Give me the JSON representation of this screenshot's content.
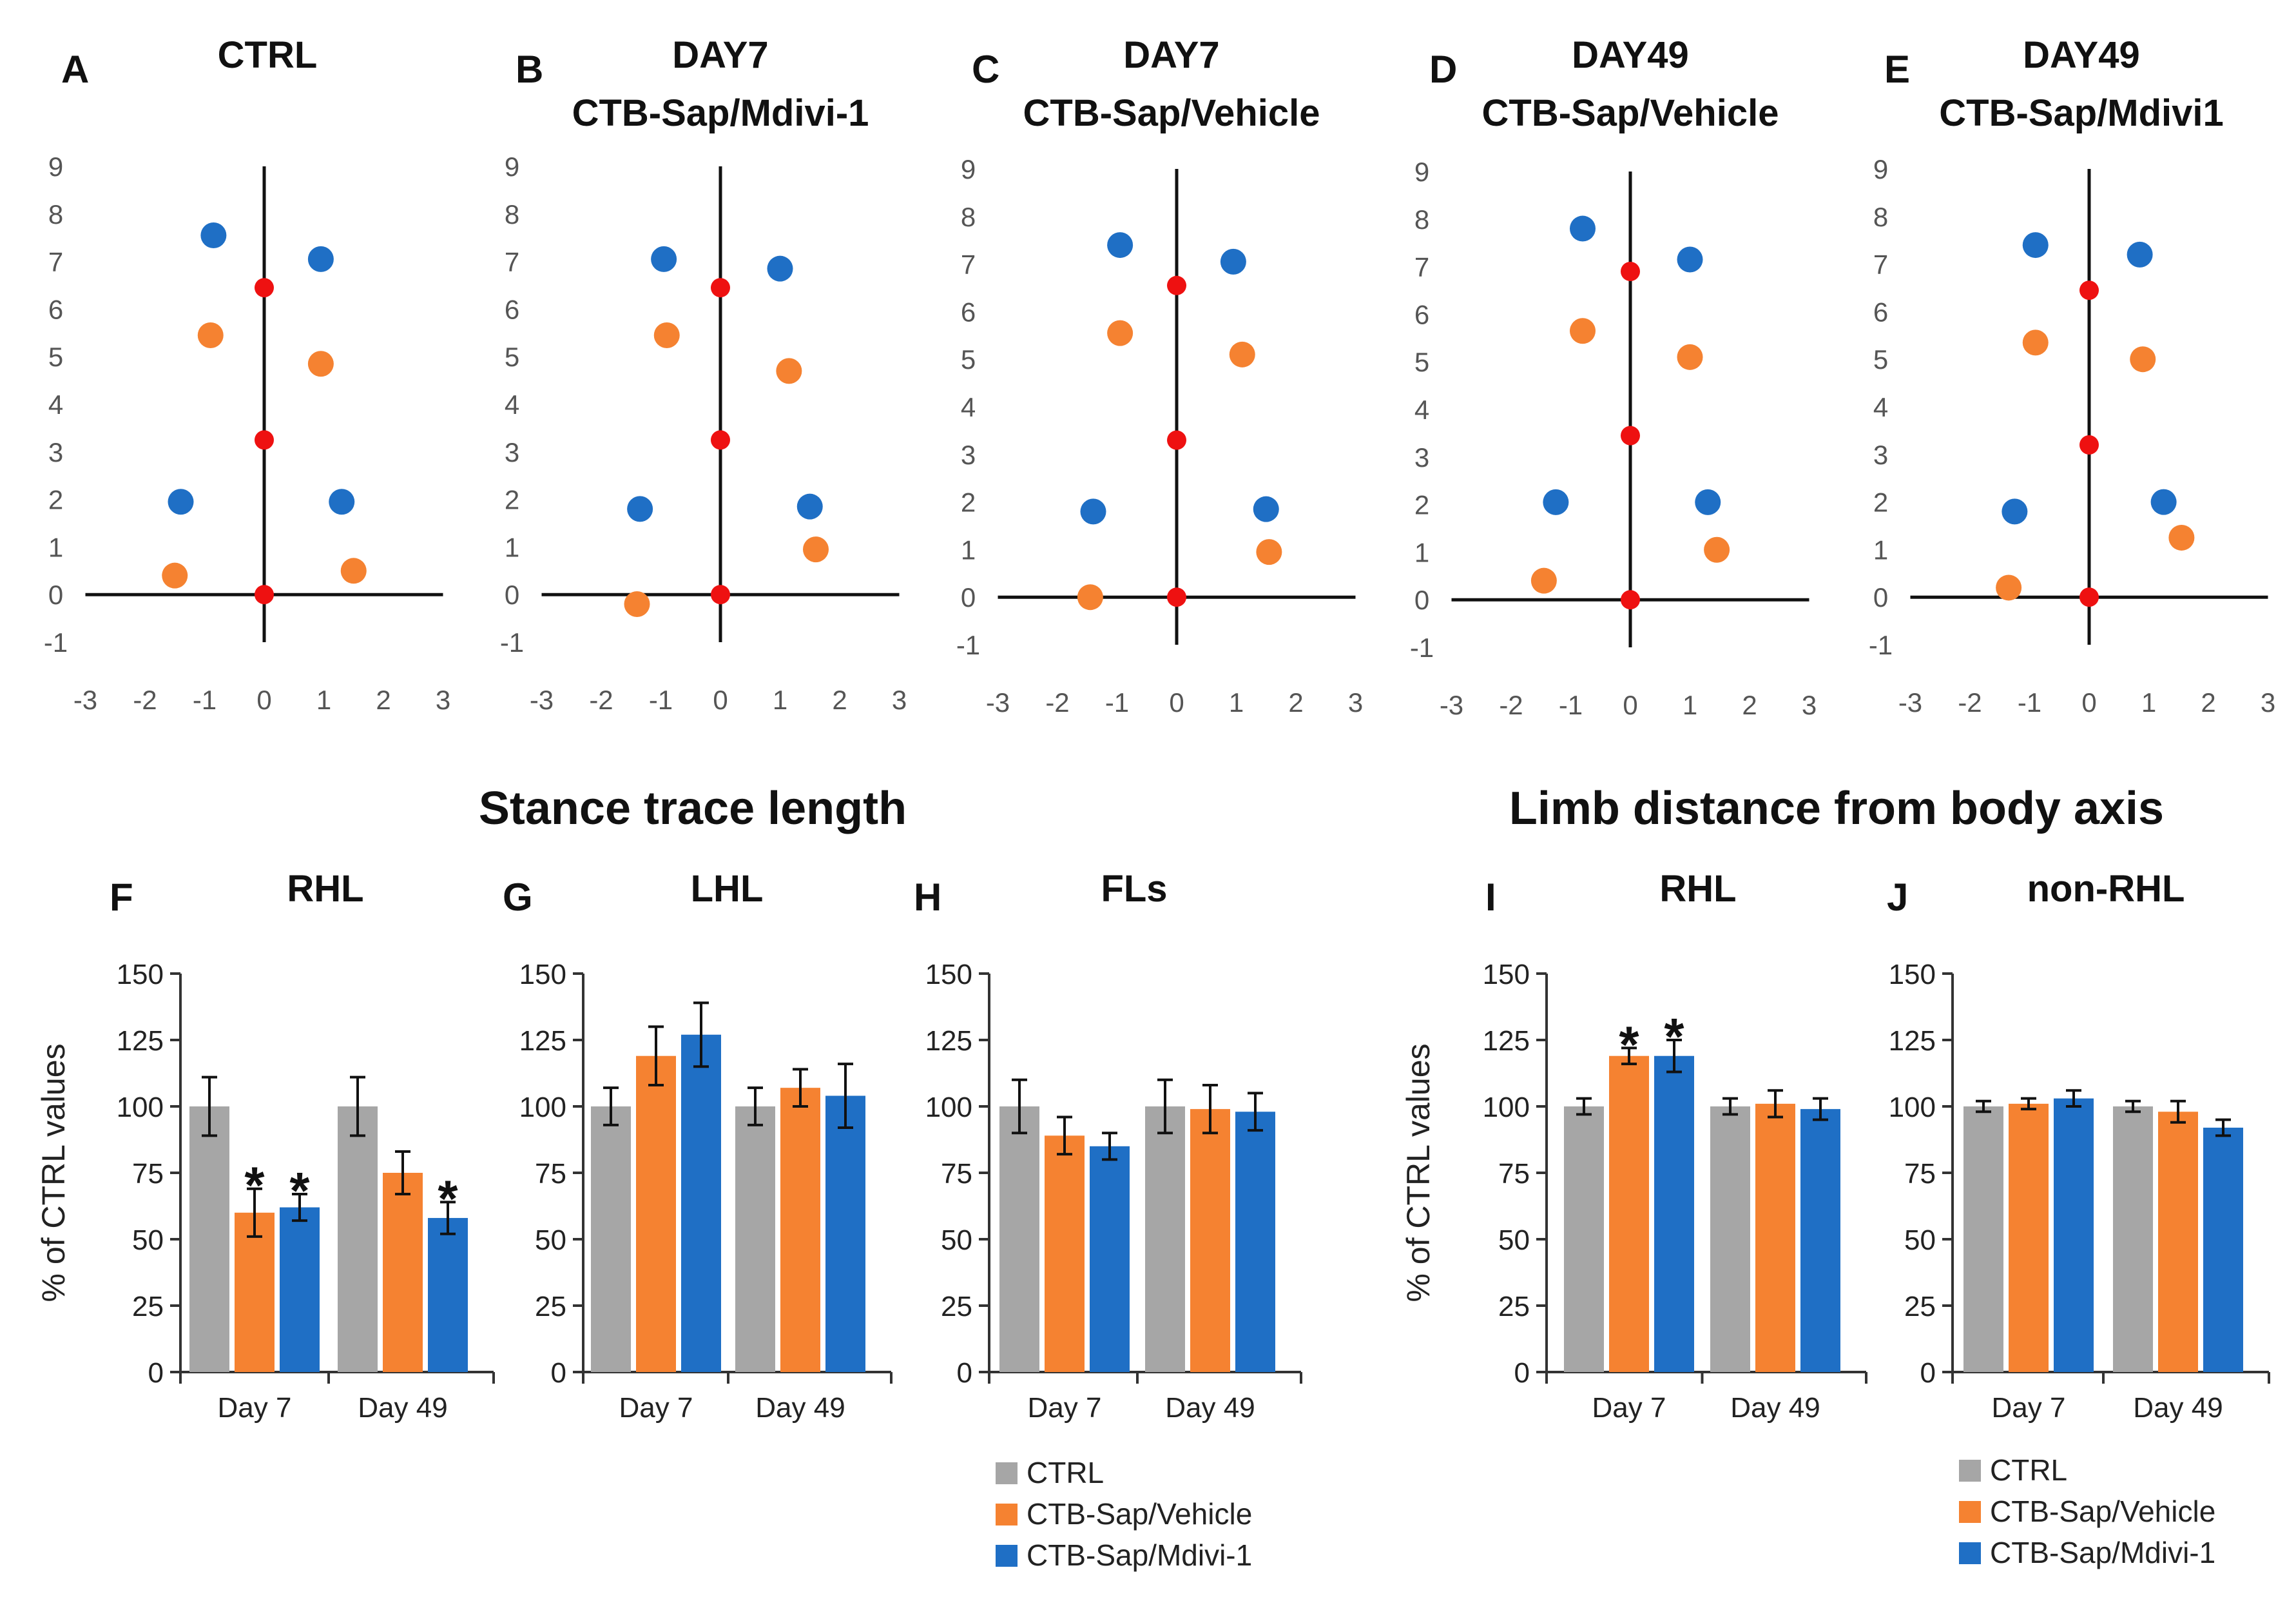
{
  "colors": {
    "ctrl": "#a6a6a6",
    "vehicle": "#f58231",
    "mdivi": "#1f6fc5",
    "center": "#ee1111",
    "axis": "#111111"
  },
  "section_titles": {
    "stance": "Stance trace length",
    "limb": "Limb distance from body axis"
  },
  "legends": [
    {
      "items": [
        {
          "label": "CTRL",
          "color_key": "ctrl"
        },
        {
          "label": "CTB-Sap/Vehicle",
          "color_key": "vehicle"
        },
        {
          "label": "CTB-Sap/Mdivi-1",
          "color_key": "mdivi"
        }
      ]
    },
    {
      "items": [
        {
          "label": "CTRL",
          "color_key": "ctrl"
        },
        {
          "label": "CTB-Sap/Vehicle",
          "color_key": "vehicle"
        },
        {
          "label": "CTB-Sap/Mdivi-1",
          "color_key": "mdivi"
        }
      ]
    }
  ],
  "chart_data": [
    {
      "id": "A",
      "type": "scatter",
      "label": "A",
      "title": [
        "CTRL"
      ],
      "xlim": [
        -3,
        3
      ],
      "ylim": [
        -1,
        9
      ],
      "xticks": [
        "-3",
        "-2",
        "-1",
        "0",
        "1",
        "2",
        "3"
      ],
      "yticks": [
        "-1",
        "0",
        "1",
        "2",
        "3",
        "4",
        "5",
        "6",
        "7",
        "8",
        "9"
      ],
      "points": [
        {
          "x": -0.85,
          "y": 7.55,
          "group": "mdivi"
        },
        {
          "x": 0.95,
          "y": 7.05,
          "group": "mdivi"
        },
        {
          "x": -0.9,
          "y": 5.45,
          "group": "vehicle"
        },
        {
          "x": 0.95,
          "y": 4.85,
          "group": "vehicle"
        },
        {
          "x": -1.4,
          "y": 1.95,
          "group": "mdivi"
        },
        {
          "x": 1.3,
          "y": 1.95,
          "group": "mdivi"
        },
        {
          "x": -1.5,
          "y": 0.4,
          "group": "vehicle"
        },
        {
          "x": 1.5,
          "y": 0.5,
          "group": "vehicle"
        },
        {
          "x": 0,
          "y": 6.45,
          "group": "center"
        },
        {
          "x": 0,
          "y": 3.25,
          "group": "center"
        },
        {
          "x": 0,
          "y": 0,
          "group": "center"
        }
      ]
    },
    {
      "id": "B",
      "type": "scatter",
      "label": "B",
      "title": [
        "DAY7",
        "CTB-Sap/Mdivi-1"
      ],
      "xlim": [
        -3,
        3
      ],
      "ylim": [
        -1,
        9
      ],
      "xticks": [
        "-3",
        "-2",
        "-1",
        "0",
        "1",
        "2",
        "3"
      ],
      "yticks": [
        "-1",
        "0",
        "1",
        "2",
        "3",
        "4",
        "5",
        "6",
        "7",
        "8",
        "9"
      ],
      "points": [
        {
          "x": -0.95,
          "y": 7.05,
          "group": "mdivi"
        },
        {
          "x": 1.0,
          "y": 6.85,
          "group": "mdivi"
        },
        {
          "x": -0.9,
          "y": 5.45,
          "group": "vehicle"
        },
        {
          "x": 1.15,
          "y": 4.7,
          "group": "vehicle"
        },
        {
          "x": -1.35,
          "y": 1.8,
          "group": "mdivi"
        },
        {
          "x": 1.5,
          "y": 1.85,
          "group": "mdivi"
        },
        {
          "x": -1.4,
          "y": -0.2,
          "group": "vehicle"
        },
        {
          "x": 1.6,
          "y": 0.95,
          "group": "vehicle"
        },
        {
          "x": 0,
          "y": 6.45,
          "group": "center"
        },
        {
          "x": 0,
          "y": 3.25,
          "group": "center"
        },
        {
          "x": 0,
          "y": 0,
          "group": "center"
        }
      ]
    },
    {
      "id": "C",
      "type": "scatter",
      "label": "C",
      "title": [
        "DAY7",
        "CTB-Sap/Vehicle"
      ],
      "xlim": [
        -3,
        3
      ],
      "ylim": [
        -1,
        9
      ],
      "xticks": [
        "-3",
        "-2",
        "-1",
        "0",
        "1",
        "2",
        "3"
      ],
      "yticks": [
        "-1",
        "0",
        "1",
        "2",
        "3",
        "4",
        "5",
        "6",
        "7",
        "8",
        "9"
      ],
      "points": [
        {
          "x": -0.95,
          "y": 7.4,
          "group": "mdivi"
        },
        {
          "x": 0.95,
          "y": 7.05,
          "group": "mdivi"
        },
        {
          "x": -0.95,
          "y": 5.55,
          "group": "vehicle"
        },
        {
          "x": 1.1,
          "y": 5.1,
          "group": "vehicle"
        },
        {
          "x": -1.4,
          "y": 1.8,
          "group": "mdivi"
        },
        {
          "x": 1.5,
          "y": 1.85,
          "group": "mdivi"
        },
        {
          "x": -1.45,
          "y": 0.0,
          "group": "vehicle"
        },
        {
          "x": 1.55,
          "y": 0.95,
          "group": "vehicle"
        },
        {
          "x": 0,
          "y": 6.55,
          "group": "center"
        },
        {
          "x": 0,
          "y": 3.3,
          "group": "center"
        },
        {
          "x": 0,
          "y": 0,
          "group": "center"
        }
      ]
    },
    {
      "id": "D",
      "type": "scatter",
      "label": "D",
      "title": [
        "DAY49",
        "CTB-Sap/Vehicle"
      ],
      "xlim": [
        -3,
        3
      ],
      "ylim": [
        -1,
        9
      ],
      "xticks": [
        "-3",
        "-2",
        "-1",
        "0",
        "1",
        "2",
        "3"
      ],
      "yticks": [
        "-1",
        "0",
        "1",
        "2",
        "3",
        "4",
        "5",
        "6",
        "7",
        "8",
        "9"
      ],
      "points": [
        {
          "x": -0.8,
          "y": 7.8,
          "group": "mdivi"
        },
        {
          "x": 1.0,
          "y": 7.15,
          "group": "mdivi"
        },
        {
          "x": -0.8,
          "y": 5.65,
          "group": "vehicle"
        },
        {
          "x": 1.0,
          "y": 5.1,
          "group": "vehicle"
        },
        {
          "x": -1.25,
          "y": 2.05,
          "group": "mdivi"
        },
        {
          "x": 1.3,
          "y": 2.05,
          "group": "mdivi"
        },
        {
          "x": -1.45,
          "y": 0.4,
          "group": "vehicle"
        },
        {
          "x": 1.45,
          "y": 1.05,
          "group": "vehicle"
        },
        {
          "x": 0,
          "y": 6.9,
          "group": "center"
        },
        {
          "x": 0,
          "y": 3.45,
          "group": "center"
        },
        {
          "x": 0,
          "y": 0,
          "group": "center"
        }
      ]
    },
    {
      "id": "E",
      "type": "scatter",
      "label": "E",
      "title": [
        "DAY49",
        "CTB-Sap/Mdivi1"
      ],
      "xlim": [
        -3,
        3
      ],
      "ylim": [
        -1,
        9
      ],
      "xticks": [
        "-3",
        "-2",
        "-1",
        "0",
        "1",
        "2",
        "3"
      ],
      "yticks": [
        "-1",
        "0",
        "1",
        "2",
        "3",
        "4",
        "5",
        "6",
        "7",
        "8",
        "9"
      ],
      "points": [
        {
          "x": -0.9,
          "y": 7.4,
          "group": "mdivi"
        },
        {
          "x": 0.85,
          "y": 7.2,
          "group": "mdivi"
        },
        {
          "x": -0.9,
          "y": 5.35,
          "group": "vehicle"
        },
        {
          "x": 0.9,
          "y": 5.0,
          "group": "vehicle"
        },
        {
          "x": -1.25,
          "y": 1.8,
          "group": "mdivi"
        },
        {
          "x": 1.25,
          "y": 2.0,
          "group": "mdivi"
        },
        {
          "x": -1.35,
          "y": 0.2,
          "group": "vehicle"
        },
        {
          "x": 1.55,
          "y": 1.25,
          "group": "vehicle"
        },
        {
          "x": 0,
          "y": 6.45,
          "group": "center"
        },
        {
          "x": 0,
          "y": 3.2,
          "group": "center"
        },
        {
          "x": 0,
          "y": 0,
          "group": "center"
        }
      ]
    },
    {
      "id": "F",
      "type": "bar",
      "label": "F",
      "title": "RHL",
      "ylabel": "% of CTRL values",
      "ylim": [
        0,
        150
      ],
      "yticks": [
        "0",
        "25",
        "50",
        "75",
        "100",
        "125",
        "150"
      ],
      "categories": [
        "Day 7",
        "Day 49"
      ],
      "series": [
        {
          "name": "CTRL",
          "color_key": "ctrl",
          "values": [
            100,
            100
          ],
          "errors": [
            11,
            11
          ],
          "stars": [
            false,
            false
          ]
        },
        {
          "name": "CTB-Sap/Vehicle",
          "color_key": "vehicle",
          "values": [
            60,
            75
          ],
          "errors": [
            9,
            8
          ],
          "stars": [
            true,
            false
          ]
        },
        {
          "name": "CTB-Sap/Mdivi-1",
          "color_key": "mdivi",
          "values": [
            62,
            58
          ],
          "errors": [
            5,
            6
          ],
          "stars": [
            true,
            true
          ]
        }
      ],
      "star_symbol": "*"
    },
    {
      "id": "G",
      "type": "bar",
      "label": "G",
      "title": "LHL",
      "ylabel": "",
      "ylim": [
        0,
        150
      ],
      "yticks": [
        "0",
        "25",
        "50",
        "75",
        "100",
        "125",
        "150"
      ],
      "categories": [
        "Day 7",
        "Day 49"
      ],
      "series": [
        {
          "name": "CTRL",
          "color_key": "ctrl",
          "values": [
            100,
            100
          ],
          "errors": [
            7,
            7
          ],
          "stars": [
            false,
            false
          ]
        },
        {
          "name": "CTB-Sap/Vehicle",
          "color_key": "vehicle",
          "values": [
            119,
            107
          ],
          "errors": [
            11,
            7
          ],
          "stars": [
            false,
            false
          ]
        },
        {
          "name": "CTB-Sap/Mdivi-1",
          "color_key": "mdivi",
          "values": [
            127,
            104
          ],
          "errors": [
            12,
            12
          ],
          "stars": [
            false,
            false
          ]
        }
      ],
      "star_symbol": "*"
    },
    {
      "id": "H",
      "type": "bar",
      "label": "H",
      "title": "FLs",
      "ylabel": "",
      "ylim": [
        0,
        150
      ],
      "yticks": [
        "0",
        "25",
        "50",
        "75",
        "100",
        "125",
        "150"
      ],
      "categories": [
        "Day 7",
        "Day 49"
      ],
      "series": [
        {
          "name": "CTRL",
          "color_key": "ctrl",
          "values": [
            100,
            100
          ],
          "errors": [
            10,
            10
          ],
          "stars": [
            false,
            false
          ]
        },
        {
          "name": "CTB-Sap/Vehicle",
          "color_key": "vehicle",
          "values": [
            89,
            99
          ],
          "errors": [
            7,
            9
          ],
          "stars": [
            false,
            false
          ]
        },
        {
          "name": "CTB-Sap/Mdivi-1",
          "color_key": "mdivi",
          "values": [
            85,
            98
          ],
          "errors": [
            5,
            7
          ],
          "stars": [
            false,
            false
          ]
        }
      ],
      "star_symbol": "*"
    },
    {
      "id": "I",
      "type": "bar",
      "label": "I",
      "title": "RHL",
      "ylabel": "% of CTRL values",
      "ylim": [
        0,
        150
      ],
      "yticks": [
        "0",
        "25",
        "50",
        "75",
        "100",
        "125",
        "150"
      ],
      "categories": [
        "Day 7",
        "Day 49"
      ],
      "series": [
        {
          "name": "CTRL",
          "color_key": "ctrl",
          "values": [
            100,
            100
          ],
          "errors": [
            3,
            3
          ],
          "stars": [
            false,
            false
          ]
        },
        {
          "name": "CTB-Sap/Vehicle",
          "color_key": "vehicle",
          "values": [
            119,
            101
          ],
          "errors": [
            3,
            5
          ],
          "stars": [
            true,
            false
          ]
        },
        {
          "name": "CTB-Sap/Mdivi-1",
          "color_key": "mdivi",
          "values": [
            119,
            99
          ],
          "errors": [
            6,
            4
          ],
          "stars": [
            true,
            false
          ]
        }
      ],
      "star_symbol": "*"
    },
    {
      "id": "J",
      "type": "bar",
      "label": "J",
      "title": "non-RHL",
      "ylabel": "",
      "ylim": [
        0,
        150
      ],
      "yticks": [
        "0",
        "25",
        "50",
        "75",
        "100",
        "125",
        "150"
      ],
      "categories": [
        "Day 7",
        "Day 49"
      ],
      "series": [
        {
          "name": "CTRL",
          "color_key": "ctrl",
          "values": [
            100,
            100
          ],
          "errors": [
            2,
            2
          ],
          "stars": [
            false,
            false
          ]
        },
        {
          "name": "CTB-Sap/Vehicle",
          "color_key": "vehicle",
          "values": [
            101,
            98
          ],
          "errors": [
            2,
            4
          ],
          "stars": [
            false,
            false
          ]
        },
        {
          "name": "CTB-Sap/Mdivi-1",
          "color_key": "mdivi",
          "values": [
            103,
            92
          ],
          "errors": [
            3,
            3
          ],
          "stars": [
            false,
            false
          ]
        }
      ],
      "star_symbol": "*"
    }
  ]
}
